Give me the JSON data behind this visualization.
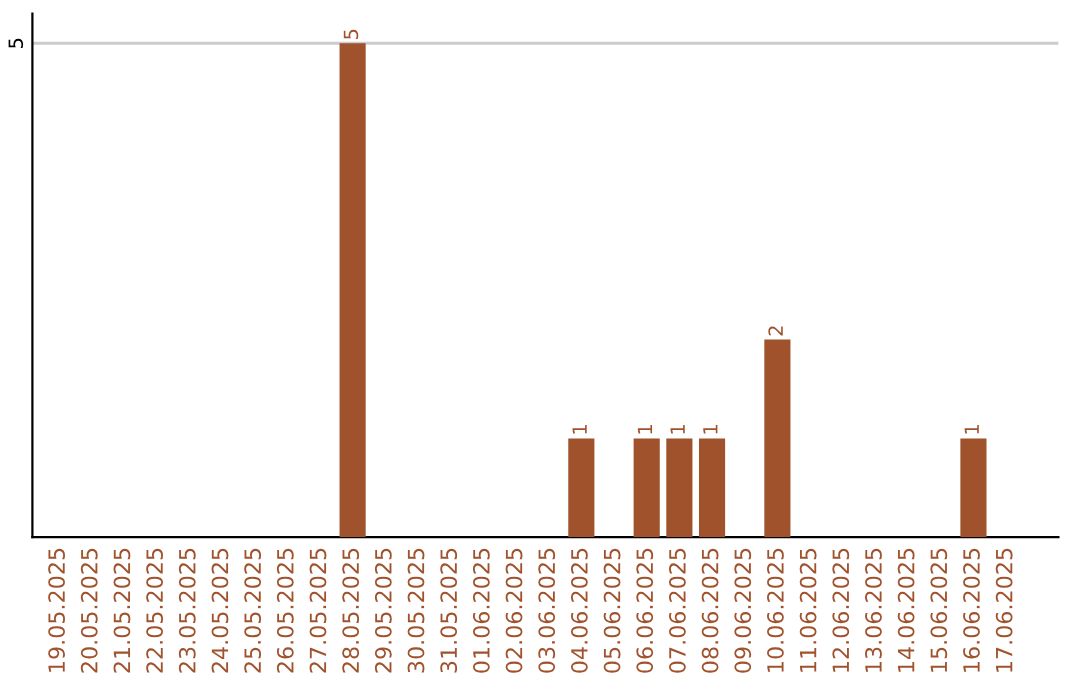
{
  "chart_data": {
    "type": "bar",
    "categories": [
      "19.05.2025",
      "20.05.2025",
      "21.05.2025",
      "22.05.2025",
      "23.05.2025",
      "24.05.2025",
      "25.05.2025",
      "26.05.2025",
      "27.05.2025",
      "28.05.2025",
      "29.05.2025",
      "30.05.2025",
      "31.05.2025",
      "01.06.2025",
      "02.06.2025",
      "03.06.2025",
      "04.06.2025",
      "05.06.2025",
      "06.06.2025",
      "07.06.2025",
      "08.06.2025",
      "09.06.2025",
      "10.06.2025",
      "11.06.2025",
      "12.06.2025",
      "13.06.2025",
      "14.06.2025",
      "15.06.2025",
      "16.06.2025",
      "17.06.2025"
    ],
    "values": [
      0,
      0,
      0,
      0,
      0,
      0,
      0,
      0,
      0,
      5,
      0,
      0,
      0,
      0,
      0,
      0,
      1,
      0,
      1,
      1,
      1,
      0,
      2,
      0,
      0,
      0,
      0,
      0,
      1,
      0
    ],
    "value_labels": [
      null,
      null,
      null,
      null,
      null,
      null,
      null,
      null,
      null,
      "5",
      null,
      null,
      null,
      null,
      null,
      null,
      "1",
      null,
      "1",
      "1",
      "1",
      null,
      "2",
      null,
      null,
      null,
      null,
      null,
      "1",
      null
    ],
    "color": "#a0522d",
    "ylim": [
      0,
      5.3
    ],
    "yticks": [
      5
    ],
    "grid": "y"
  }
}
